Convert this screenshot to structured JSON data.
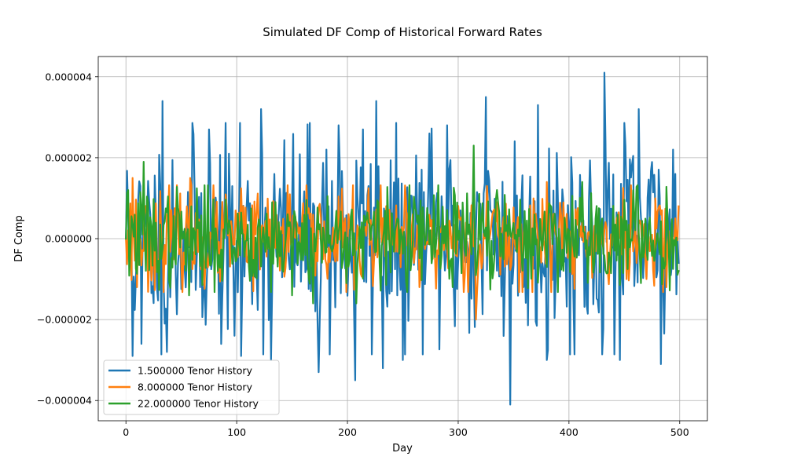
{
  "chart_data": {
    "type": "line",
    "title": "Simulated DF Comp of Historical Forward Rates",
    "xlabel": "Day",
    "ylabel": "DF Comp",
    "xlim": [
      -25,
      525
    ],
    "ylim": [
      -4.5e-06,
      4.5e-06
    ],
    "xticks": [
      0,
      100,
      200,
      300,
      400,
      500
    ],
    "xtick_labels": [
      "0",
      "100",
      "200",
      "300",
      "400",
      "500"
    ],
    "yticks": [
      -4e-06,
      -2e-06,
      0,
      2e-06,
      4e-06
    ],
    "ytick_labels": [
      "−0.000004",
      "−0.000002",
      "0.000000",
      "0.000002",
      "0.000004"
    ],
    "grid": true,
    "legend_position": "lower-left",
    "num_points": 500,
    "series": [
      {
        "name": "1.500000 Tenor History",
        "color": "#1f77b4",
        "amplitude": 1.3e-06,
        "seed": 11,
        "extremes": [
          [
            0,
            0.0
          ],
          [
            6,
            -2.9e-06
          ],
          [
            14,
            -2.6e-06
          ],
          [
            33,
            3.4e-06
          ],
          [
            35,
            -2.1e-06
          ],
          [
            37,
            -2.8e-06
          ],
          [
            75,
            2.7e-06
          ],
          [
            98,
            -2.4e-06
          ],
          [
            104,
            -2.9e-06
          ],
          [
            122,
            3.2e-06
          ],
          [
            131,
            -3e-06
          ],
          [
            174,
            -3.3e-06
          ],
          [
            181,
            2.2e-06
          ],
          [
            192,
            2.8e-06
          ],
          [
            207,
            -3.5e-06
          ],
          [
            214,
            2.7e-06
          ],
          [
            226,
            3.4e-06
          ],
          [
            232,
            -3.2e-06
          ],
          [
            250,
            -3e-06
          ],
          [
            274,
            2.6e-06
          ],
          [
            290,
            2.8e-06
          ],
          [
            325,
            3.5e-06
          ],
          [
            347,
            -4.1e-06
          ],
          [
            372,
            3.3e-06
          ],
          [
            380,
            -3e-06
          ],
          [
            432,
            4.1e-06
          ],
          [
            446,
            -3e-06
          ],
          [
            463,
            3.2e-06
          ],
          [
            483,
            -3.1e-06
          ],
          [
            494,
            2.2e-06
          ],
          [
            499,
            -6e-07
          ]
        ]
      },
      {
        "name": "8.000000 Tenor History",
        "color": "#ff7f0e",
        "amplitude": 6e-07,
        "seed": 23,
        "extremes": [
          [
            0,
            0.0
          ],
          [
            6,
            1.5e-06
          ],
          [
            10,
            -1.2e-06
          ],
          [
            58,
            1.5e-06
          ],
          [
            115,
            -1.3e-06
          ],
          [
            265,
            -1.2e-06
          ],
          [
            316,
            -2e-06
          ],
          [
            326,
            1.3e-06
          ],
          [
            380,
            1.4e-06
          ],
          [
            470,
            -1e-06
          ],
          [
            499,
            8e-07
          ]
        ]
      },
      {
        "name": "22.000000 Tenor History",
        "color": "#2ca02c",
        "amplitude": 6e-07,
        "seed": 37,
        "extremes": [
          [
            0,
            0.0
          ],
          [
            2,
            1.2e-06
          ],
          [
            16,
            1.9e-06
          ],
          [
            57,
            -1.4e-06
          ],
          [
            150,
            -1.4e-06
          ],
          [
            169,
            -1.6e-06
          ],
          [
            208,
            -1.6e-06
          ],
          [
            295,
            -1.2e-06
          ],
          [
            314,
            2.3e-06
          ],
          [
            335,
            1.2e-06
          ],
          [
            412,
            1.4e-06
          ],
          [
            465,
            -1.1e-06
          ],
          [
            499,
            -8e-07
          ]
        ]
      }
    ]
  }
}
